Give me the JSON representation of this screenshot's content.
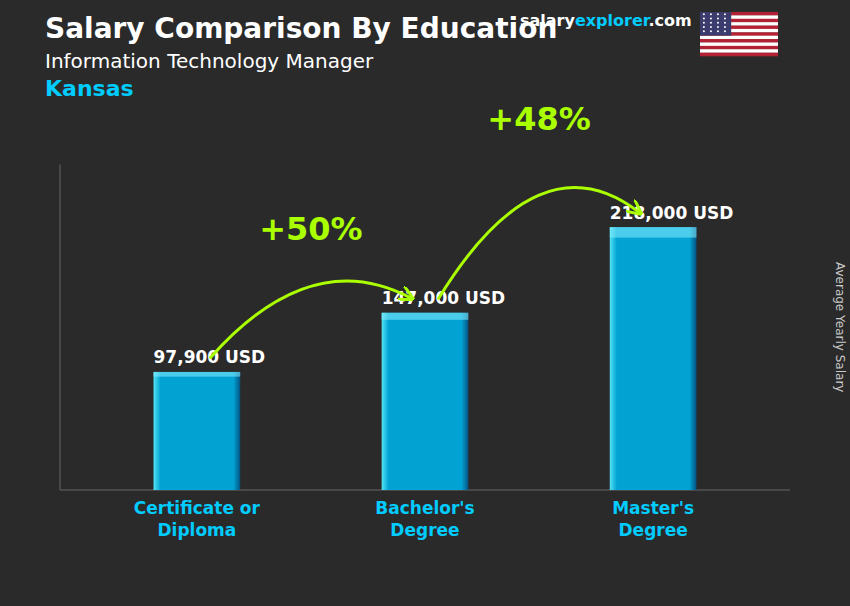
{
  "chart_data": {
    "type": "bar",
    "title": "Salary Comparison By Education",
    "subtitle": "Information Technology Manager",
    "location": "Kansas",
    "brand": [
      "salary",
      "explorer",
      ".com"
    ],
    "ylabel": "Average Yearly Salary",
    "categories": [
      "Certificate or\nDiploma",
      "Bachelor's\nDegree",
      "Master's\nDegree"
    ],
    "values": [
      97900,
      147000,
      218000
    ],
    "value_labels": [
      "97,900 USD",
      "147,000 USD",
      "218,000 USD"
    ],
    "annotations": [
      "+50%",
      "+48%"
    ],
    "color": "#00aadd",
    "ylim": [
      0,
      270000
    ],
    "data_labels": true,
    "tick_labels": false,
    "grid": false
  }
}
